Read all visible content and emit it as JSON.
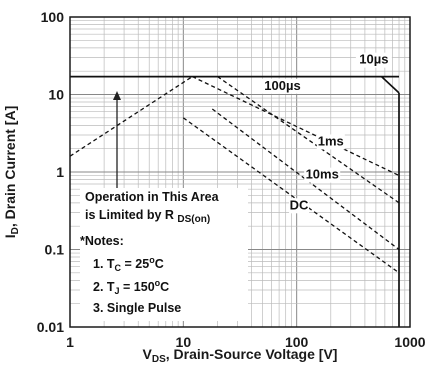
{
  "chart_data": {
    "type": "line",
    "xscale": "log",
    "yscale": "log",
    "xlim": [
      1,
      1000
    ],
    "ylim": [
      0.01,
      100
    ],
    "x_ticks": [
      "1",
      "10",
      "100",
      "1000"
    ],
    "y_ticks": [
      "100",
      "10",
      "1",
      "0.1",
      "0.01"
    ],
    "grid": true,
    "xlabel": {
      "pre": "V",
      "sub": "DS",
      "post": ", Drain-Source Voltage [V]"
    },
    "ylabel": {
      "pre": "I",
      "sub": "D",
      "post": ", Drain Current [A]"
    },
    "limits": [
      {
        "name": "RDS(on) limit",
        "style": "dashed",
        "points": [
          [
            1,
            1.6
          ],
          [
            12,
            17
          ]
        ]
      },
      {
        "name": "Current limit",
        "style": "solid",
        "points": [
          [
            1,
            17
          ],
          [
            800,
            17
          ]
        ]
      },
      {
        "name": "Voltage limit",
        "style": "solid",
        "points": [
          [
            800,
            10.5
          ],
          [
            800,
            0.01
          ]
        ]
      }
    ],
    "series": [
      {
        "name": "10µs",
        "style": "solid",
        "points": [
          [
            560,
            17
          ],
          [
            800,
            10.5
          ]
        ]
      },
      {
        "name": "100µs",
        "style": "dashed",
        "points": [
          [
            12,
            17
          ],
          [
            800,
            0.9
          ]
        ]
      },
      {
        "name": "1ms",
        "style": "dashed",
        "points": [
          [
            20,
            17
          ],
          [
            800,
            0.4
          ]
        ]
      },
      {
        "name": "10ms",
        "style": "dashed",
        "points": [
          [
            18,
            6.5
          ],
          [
            800,
            0.1
          ]
        ]
      },
      {
        "name": "DC",
        "style": "dashed",
        "points": [
          [
            10,
            5
          ],
          [
            800,
            0.05
          ]
        ]
      }
    ],
    "curve_labels": [
      {
        "text": "10µs",
        "at": [
          480,
          25
        ]
      },
      {
        "text": "100µs",
        "at": [
          75,
          11.5
        ]
      },
      {
        "text": "1ms",
        "at": [
          200,
          2.2
        ]
      },
      {
        "text": "10ms",
        "at": [
          168,
          0.82
        ]
      },
      {
        "text": "DC",
        "at": [
          105,
          0.33
        ]
      }
    ],
    "annotation": {
      "area_line1": "Operation in This Area",
      "area_line2_pre": "is Limited by R ",
      "area_line2_sub": "DS(on)",
      "notes_title": "*Notes:",
      "note1_pre": "1. T",
      "note1_sub": "C",
      "note1_mid": " = 25",
      "note1_sup": "o",
      "note1_post": "C",
      "note2_pre": "2. T",
      "note2_sub": "J",
      "note2_mid": " = 150",
      "note2_sup": "o",
      "note2_post": "C",
      "note3": "3. Single Pulse"
    }
  }
}
